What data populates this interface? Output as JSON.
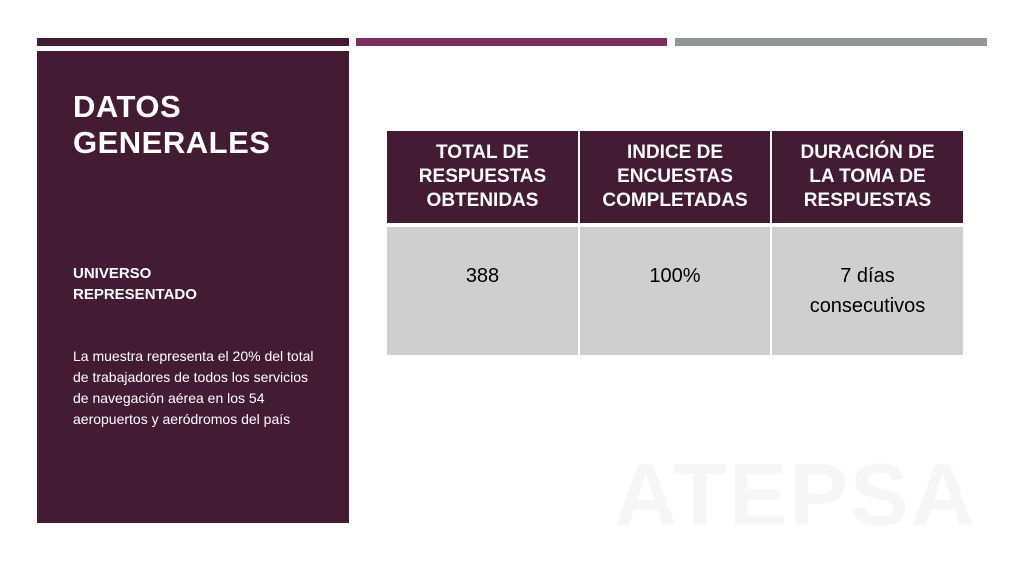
{
  "accent_colors": {
    "dark_plum": "#431c33",
    "magenta": "#7d2e60",
    "gray": "#939598",
    "cell_gray": "#cfcfd0"
  },
  "side_panel": {
    "title_line1": "DATOS",
    "title_line2": "GENERALES",
    "subtitle_line1": "UNIVERSO",
    "subtitle_line2": "REPRESENTADO",
    "body": "La muestra representa el 20% del total de trabajadores de todos los servicios de navegación aérea en los 54 aeropuertos y aeródromos del país"
  },
  "table": {
    "headers": [
      {
        "line1": "TOTAL DE",
        "line2": "RESPUESTAS",
        "line3": "OBTENIDAS"
      },
      {
        "line1": "INDICE DE",
        "line2": "ENCUESTAS",
        "line3": "COMPLETADAS"
      },
      {
        "line1": "DURACIÓN DE",
        "line2": "LA TOMA DE",
        "line3": "RESPUESTAS"
      }
    ],
    "cells": [
      {
        "line1": "388",
        "line2": ""
      },
      {
        "line1": "100%",
        "line2": ""
      },
      {
        "line1": "7 días",
        "line2": "consecutivos"
      }
    ]
  },
  "watermark": "ATEPSA"
}
